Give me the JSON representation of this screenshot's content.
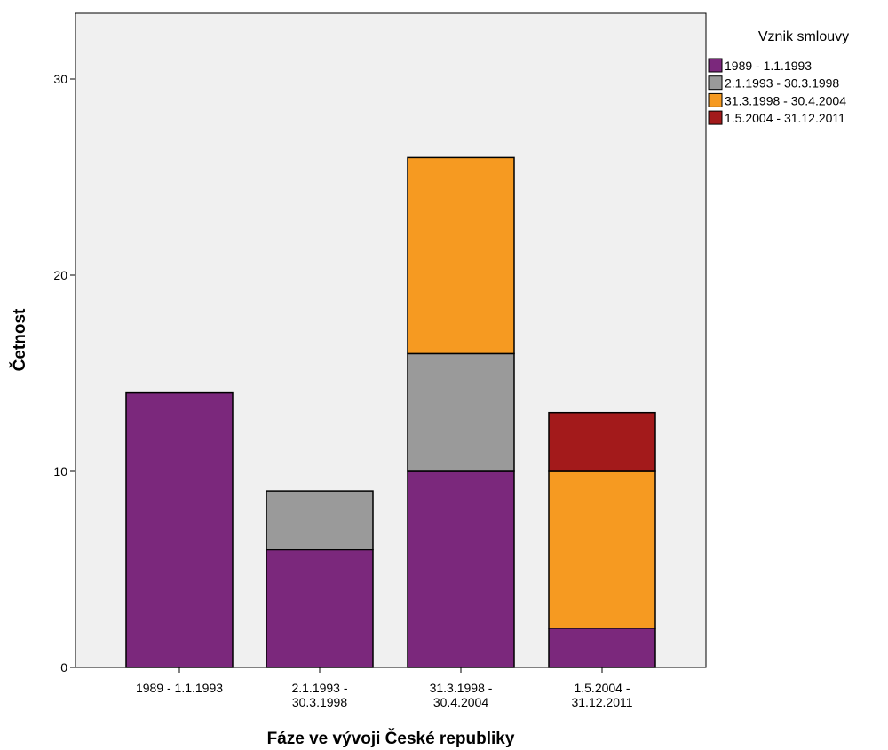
{
  "chart_data": {
    "type": "bar",
    "stacked": true,
    "xlabel": "Fáze ve vývoji České republiky",
    "ylabel": "Četnost",
    "ylim": [
      0,
      33
    ],
    "yticks": [
      0,
      10,
      20,
      30
    ],
    "grid": false,
    "categories": [
      [
        "1989 - 1.1.1993"
      ],
      [
        "2.1.1993 -",
        "30.3.1998"
      ],
      [
        "31.3.1998 -",
        "30.4.2004"
      ],
      [
        "1.5.2004 -",
        "31.12.2011"
      ]
    ],
    "legend": {
      "title": "Vznik smlouvy",
      "placement": "right"
    },
    "series": [
      {
        "name": "1989 - 1.1.1993",
        "color": "#7b287c",
        "values": [
          14,
          6,
          10,
          2
        ]
      },
      {
        "name": "2.1.1993 - 30.3.1998",
        "color": "#9a9a9a",
        "values": [
          0,
          3,
          6,
          0
        ]
      },
      {
        "name": "31.3.1998 - 30.4.2004",
        "color": "#f69a21",
        "values": [
          0,
          0,
          10,
          8
        ]
      },
      {
        "name": "1.5.2004 - 31.12.2011",
        "color": "#a31a1b",
        "values": [
          0,
          0,
          0,
          3
        ]
      }
    ],
    "plot_background": "#f0f0f0",
    "bar_outline": "#000000"
  }
}
